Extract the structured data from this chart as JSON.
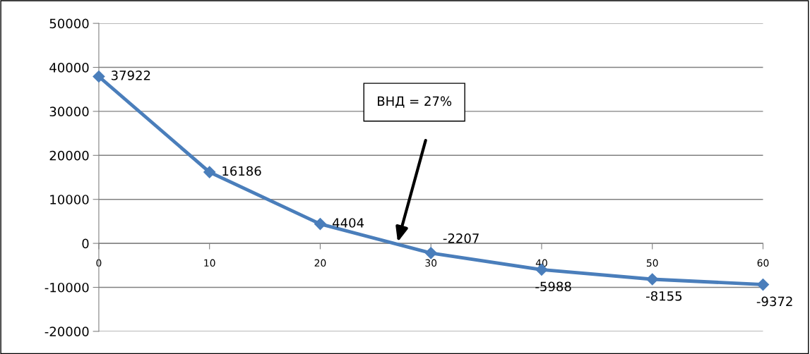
{
  "chart_data": {
    "type": "line",
    "x": [
      0,
      10,
      20,
      30,
      40,
      50,
      60
    ],
    "series": [
      {
        "color": "#4a7ebb",
        "values": [
          37922,
          16186,
          4404,
          -2207,
          -5988,
          -8155,
          -9372
        ]
      }
    ],
    "xlim": [
      0,
      60
    ],
    "xticks": [
      0,
      10,
      20,
      30,
      40,
      50,
      60
    ],
    "ylim": [
      -20000,
      50000
    ],
    "yticks": [
      -20000,
      -10000,
      0,
      10000,
      20000,
      30000,
      40000,
      50000
    ],
    "grid": "y",
    "marker": "diamond",
    "line_style": "solid",
    "data_labels": true,
    "annotations": [
      "ВНД = 27%"
    ]
  }
}
